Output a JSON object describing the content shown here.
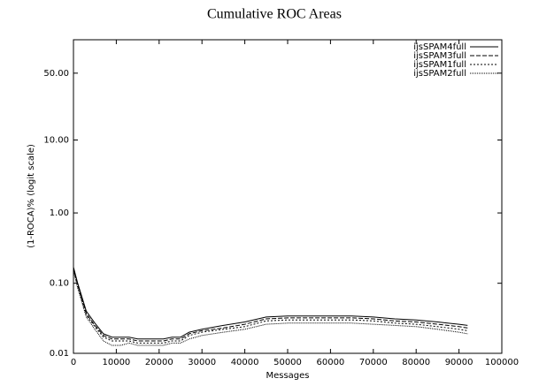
{
  "chart_data": {
    "type": "line",
    "title": "Cumulative ROC Areas",
    "x_label": "Messages",
    "y_label": "(1-ROCA)%  (logit scale)",
    "yscale": "logit",
    "legend": "top-right",
    "xlim": [
      0,
      100000
    ],
    "xticks": [
      0,
      10000,
      20000,
      30000,
      40000,
      50000,
      60000,
      70000,
      80000,
      90000,
      100000
    ],
    "ylim": [
      0.01,
      75
    ],
    "yticks": [
      0.01,
      {
        "value": 0.1,
        "label": "0.10"
      },
      {
        "value": 1,
        "label": "1.00"
      },
      {
        "value": 10,
        "label": "10.00"
      },
      {
        "value": 50,
        "label": "50.00"
      }
    ],
    "x": [
      0,
      1000,
      3000,
      5000,
      7000,
      9000,
      11000,
      13000,
      15000,
      17000,
      19000,
      21000,
      23000,
      25000,
      27000,
      30000,
      35000,
      40000,
      45000,
      50000,
      55000,
      60000,
      65000,
      70000,
      75000,
      80000,
      85000,
      90000,
      92000
    ],
    "series": [
      {
        "name": "ijsSPAM4full",
        "color": "#000",
        "dash": "none",
        "values": [
          0.17,
          0.1,
          0.04,
          0.027,
          0.019,
          0.017,
          0.017,
          0.017,
          0.016,
          0.016,
          0.016,
          0.016,
          0.017,
          0.017,
          0.02,
          0.022,
          0.025,
          0.028,
          0.033,
          0.034,
          0.034,
          0.034,
          0.034,
          0.033,
          0.031,
          0.03,
          0.028,
          0.026,
          0.025
        ]
      },
      {
        "name": "ijsSPAM3full",
        "color": "#000",
        "dash": "5,2",
        "values": [
          0.165,
          0.095,
          0.037,
          0.025,
          0.018,
          0.016,
          0.016,
          0.016,
          0.015,
          0.015,
          0.015,
          0.015,
          0.016,
          0.016,
          0.019,
          0.021,
          0.023,
          0.026,
          0.031,
          0.032,
          0.032,
          0.032,
          0.032,
          0.031,
          0.029,
          0.028,
          0.026,
          0.024,
          0.023
        ]
      },
      {
        "name": "ijsSPAM1full",
        "color": "#000",
        "dash": "2,2",
        "values": [
          0.16,
          0.09,
          0.035,
          0.024,
          0.017,
          0.015,
          0.015,
          0.015,
          0.014,
          0.014,
          0.014,
          0.014,
          0.015,
          0.015,
          0.018,
          0.02,
          0.022,
          0.024,
          0.029,
          0.03,
          0.03,
          0.03,
          0.03,
          0.029,
          0.027,
          0.026,
          0.024,
          0.022,
          0.021
        ]
      },
      {
        "name": "ijsSPAM2full",
        "color": "#000",
        "dash": "1,1",
        "values": [
          0.15,
          0.085,
          0.033,
          0.022,
          0.015,
          0.013,
          0.013,
          0.014,
          0.013,
          0.013,
          0.013,
          0.013,
          0.014,
          0.014,
          0.016,
          0.018,
          0.02,
          0.022,
          0.026,
          0.027,
          0.027,
          0.027,
          0.027,
          0.026,
          0.025,
          0.024,
          0.022,
          0.02,
          0.019
        ]
      }
    ]
  }
}
